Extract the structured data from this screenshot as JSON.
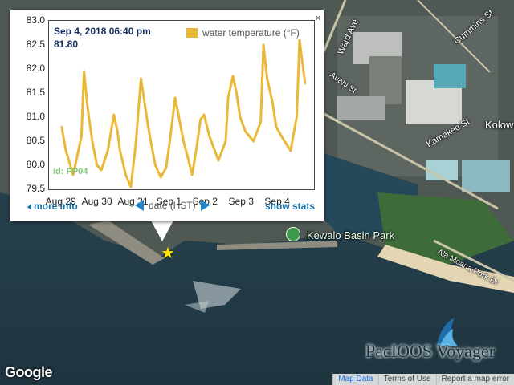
{
  "map": {
    "street_labels": [
      "Ward Ave",
      "Cummins St",
      "Kamakee St",
      "Kolowalu",
      "Ala Moana Park Dr",
      "Auahi St"
    ],
    "park_label": "Kewalo Basin Park",
    "google_logo": "Google",
    "attribution": [
      "Map Data",
      "Terms of Use",
      "Report a map error"
    ],
    "brand_text": "PacIOOS Voyager",
    "marker": "star-icon"
  },
  "popup": {
    "readout_date": "Sep 4, 2018 06:40 pm",
    "readout_value": "81.80",
    "legend_label": "water temperature (°F)",
    "station_id": "id: PP04",
    "more_info": "more info",
    "x_control_label": "date (HST)",
    "show_stats": "show stats",
    "close": "×"
  },
  "colors": {
    "series": "#e9b838",
    "link": "#1870a8",
    "arrow": "#1f87c8"
  },
  "chart_data": {
    "type": "line",
    "title": "",
    "xlabel": "date (HST)",
    "ylabel": "",
    "ylim": [
      79.5,
      83.0
    ],
    "yticks": [
      "83.0",
      "82.5",
      "82.0",
      "81.5",
      "81.0",
      "80.5",
      "80.0",
      "79.5"
    ],
    "xticks": [
      "Aug 29",
      "Aug 30",
      "Aug 31",
      "Sep 1",
      "Sep 2",
      "Sep 3",
      "Sep 4"
    ],
    "legend_position": "top-right",
    "series": [
      {
        "name": "water temperature (°F)",
        "x": [
          0.0,
          0.12,
          0.32,
          0.55,
          0.62,
          0.72,
          0.85,
          0.98,
          1.1,
          1.28,
          1.45,
          1.55,
          1.62,
          1.78,
          1.92,
          2.05,
          2.2,
          2.4,
          2.52,
          2.6,
          2.75,
          2.9,
          3.0,
          3.15,
          3.38,
          3.52,
          3.62,
          3.75,
          3.85,
          3.95,
          4.1,
          4.35,
          4.55,
          4.62,
          4.75,
          4.85,
          4.95,
          5.1,
          5.32,
          5.52,
          5.6,
          5.7,
          5.85,
          5.95,
          6.1,
          6.35,
          6.52,
          6.6,
          6.75
        ],
        "y": [
          80.8,
          80.3,
          79.8,
          80.6,
          81.95,
          81.2,
          80.5,
          80.0,
          79.9,
          80.3,
          81.05,
          80.7,
          80.3,
          79.8,
          79.55,
          80.4,
          81.8,
          80.8,
          80.3,
          80.0,
          79.75,
          79.95,
          80.5,
          81.4,
          80.5,
          80.1,
          79.8,
          80.4,
          80.95,
          81.05,
          80.6,
          80.1,
          80.5,
          81.4,
          81.85,
          81.5,
          81.0,
          80.7,
          80.5,
          80.9,
          82.5,
          81.8,
          81.3,
          80.8,
          80.6,
          80.3,
          81.0,
          82.6,
          81.7
        ]
      }
    ],
    "readout": {
      "date": "Sep 4, 2018 06:40 pm",
      "value": 81.8
    },
    "station": "id: PP04"
  }
}
